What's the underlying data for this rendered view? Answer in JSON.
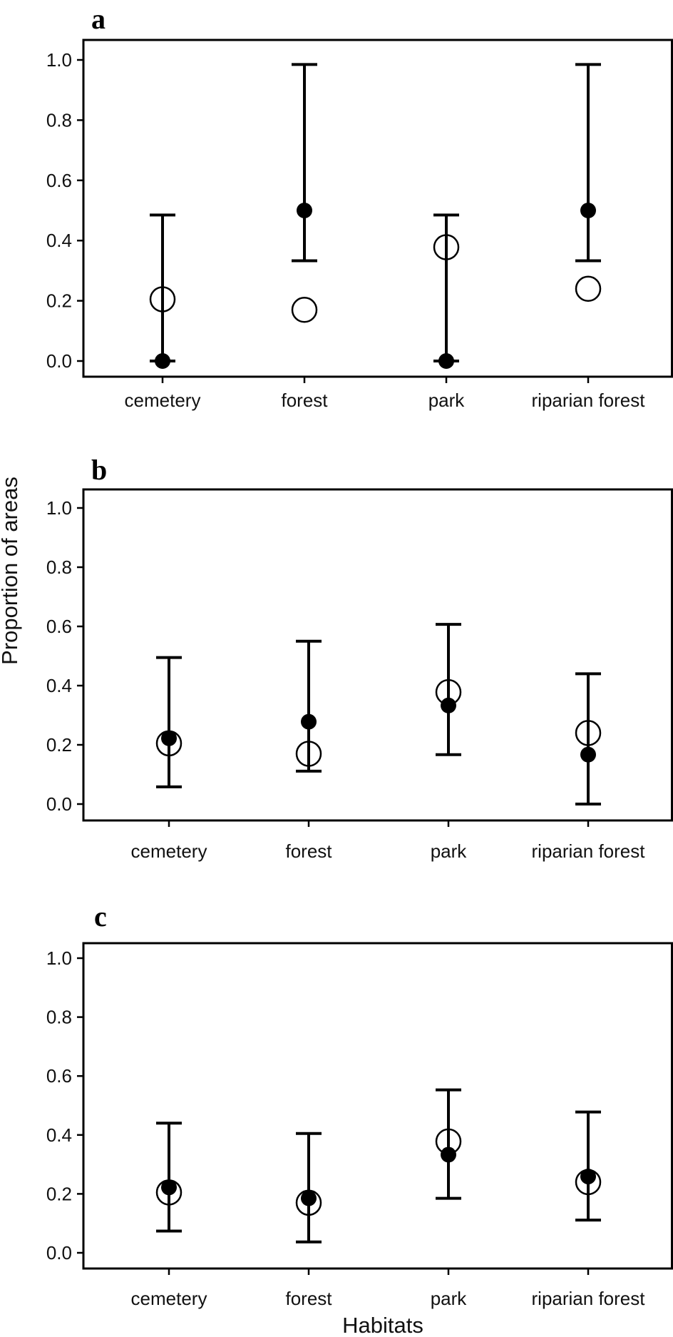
{
  "figure": {
    "ylabel": "Proportion of areas",
    "xlabel": "Habitats"
  },
  "chart_data": [
    {
      "type": "scatter",
      "panel_label": "a",
      "categories": [
        "cemetery",
        "forest",
        "park",
        "riparian forest"
      ],
      "ylim": [
        0,
        1.05
      ],
      "yticks": [
        0.0,
        0.2,
        0.4,
        0.6,
        0.8,
        1.0
      ],
      "ytick_labels": [
        "0.0",
        "0.2",
        "0.4",
        "0.6",
        "0.8",
        "1.0"
      ],
      "grid": false,
      "series": [
        {
          "marker": "filled-circle",
          "values": [
            0.0,
            0.5,
            0.0,
            0.5
          ],
          "lower": [
            0.0,
            0.333,
            0.0,
            0.333
          ],
          "upper": [
            0.485,
            0.985,
            0.485,
            0.985
          ]
        },
        {
          "marker": "open-circle",
          "values": [
            0.205,
            0.17,
            0.378,
            0.24
          ]
        }
      ]
    },
    {
      "type": "scatter",
      "panel_label": "b",
      "categories": [
        "cemetery",
        "forest",
        "park",
        "riparian forest"
      ],
      "ylim": [
        0,
        1.05
      ],
      "yticks": [
        0.0,
        0.2,
        0.4,
        0.6,
        0.8,
        1.0
      ],
      "ytick_labels": [
        "0.0",
        "0.2",
        "0.4",
        "0.6",
        "0.8",
        "1.0"
      ],
      "grid": false,
      "series": [
        {
          "marker": "filled-circle",
          "values": [
            0.222,
            0.278,
            0.333,
            0.167
          ],
          "lower": [
            0.058,
            0.111,
            0.167,
            0.0
          ],
          "upper": [
            0.495,
            0.55,
            0.607,
            0.44
          ]
        },
        {
          "marker": "open-circle",
          "values": [
            0.205,
            0.17,
            0.378,
            0.24
          ]
        }
      ]
    },
    {
      "type": "scatter",
      "panel_label": "c",
      "categories": [
        "cemetery",
        "forest",
        "park",
        "riparian forest"
      ],
      "ylim": [
        0,
        1.05
      ],
      "yticks": [
        0.0,
        0.2,
        0.4,
        0.6,
        0.8,
        1.0
      ],
      "ytick_labels": [
        "0.0",
        "0.2",
        "0.4",
        "0.6",
        "0.8",
        "1.0"
      ],
      "grid": false,
      "series": [
        {
          "marker": "filled-circle",
          "values": [
            0.222,
            0.185,
            0.333,
            0.259
          ],
          "lower": [
            0.074,
            0.037,
            0.185,
            0.111
          ],
          "upper": [
            0.44,
            0.405,
            0.553,
            0.478
          ]
        },
        {
          "marker": "open-circle",
          "values": [
            0.205,
            0.17,
            0.378,
            0.24
          ]
        }
      ]
    }
  ]
}
